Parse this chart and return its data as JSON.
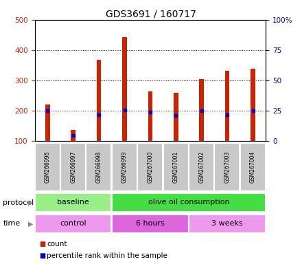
{
  "title": "GDS3691 / 160717",
  "samples": [
    "GSM266996",
    "GSM266997",
    "GSM266998",
    "GSM266999",
    "GSM267000",
    "GSM267001",
    "GSM267002",
    "GSM267003",
    "GSM267004"
  ],
  "counts": [
    222,
    138,
    368,
    443,
    263,
    260,
    305,
    333,
    338
  ],
  "percentile_ranks": [
    25,
    5,
    22,
    26,
    24,
    21,
    25,
    22,
    25
  ],
  "ylim_left": [
    100,
    500
  ],
  "ylim_right": [
    0,
    100
  ],
  "yticks_left": [
    100,
    200,
    300,
    400,
    500
  ],
  "yticks_right": [
    0,
    25,
    50,
    75,
    100
  ],
  "protocol_groups": [
    {
      "label": "baseline",
      "start": 0,
      "end": 3,
      "color": "#99EE88"
    },
    {
      "label": "olive oil consumption",
      "start": 3,
      "end": 9,
      "color": "#44DD44"
    }
  ],
  "time_groups": [
    {
      "label": "control",
      "start": 0,
      "end": 3,
      "color": "#EE99EE"
    },
    {
      "label": "6 hours",
      "start": 3,
      "end": 6,
      "color": "#DD66DD"
    },
    {
      "label": "3 weeks",
      "start": 6,
      "end": 9,
      "color": "#EE99EE"
    }
  ],
  "bar_color": "#CC2200",
  "percentile_color": "#0000CC",
  "bg_color": "#FFFFFF",
  "left_axis_color": "#CC2200",
  "right_axis_color": "#0000BB",
  "grid_color": "#000000",
  "tick_label_bg": "#C8C8C8",
  "legend_count_label": "count",
  "legend_percentile_label": "percentile rank within the sample",
  "protocol_label": "protocol",
  "time_label": "time",
  "bar_width": 0.18
}
